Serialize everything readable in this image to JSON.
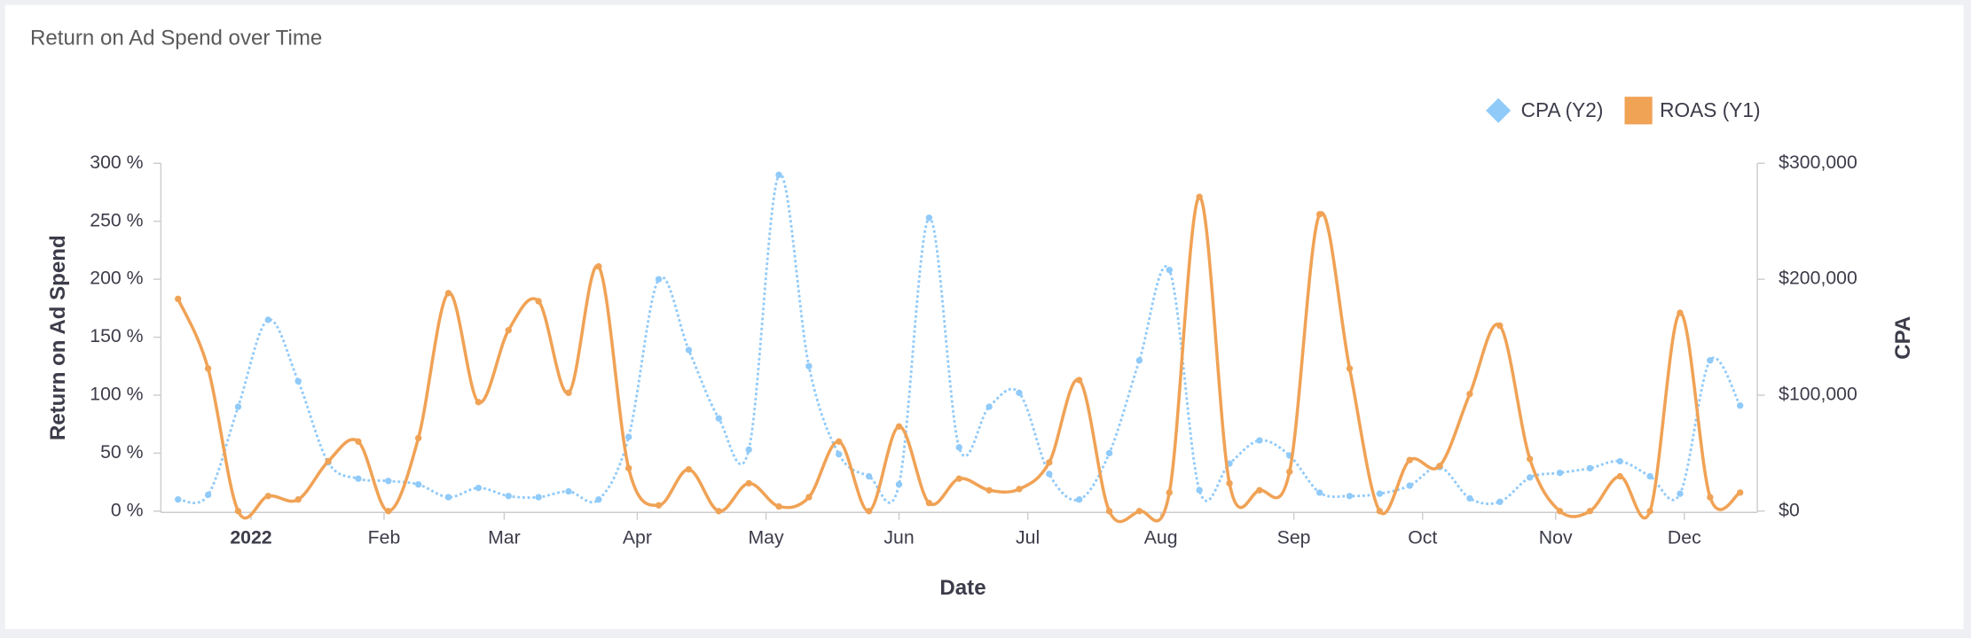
{
  "chart_data": {
    "type": "line",
    "title": "Return on Ad Spend over Time",
    "x_label": "Date",
    "y_label": "Return on Ad Spend",
    "y2_label": "CPA",
    "x": [
      -2,
      5,
      12,
      19,
      26,
      33,
      40,
      47,
      54,
      61,
      68,
      75,
      82,
      89,
      96,
      103,
      110,
      117,
      124,
      131,
      138,
      145,
      152,
      159,
      166,
      173,
      180,
      187,
      194,
      201,
      208,
      215,
      222,
      229,
      236,
      243,
      250,
      257,
      264,
      271,
      278,
      285,
      292,
      299,
      306,
      313,
      320,
      327,
      334,
      341,
      348,
      355,
      362
    ],
    "xlim": [
      -6,
      366
    ],
    "xticks": [
      {
        "value": 15,
        "label": "2022"
      },
      {
        "value": 46,
        "label": "Feb"
      },
      {
        "value": 74,
        "label": "Mar"
      },
      {
        "value": 105,
        "label": "Apr"
      },
      {
        "value": 135,
        "label": "May"
      },
      {
        "value": 166,
        "label": "Jun"
      },
      {
        "value": 196,
        "label": "Jul"
      },
      {
        "value": 227,
        "label": "Aug"
      },
      {
        "value": 258,
        "label": "Sep"
      },
      {
        "value": 288,
        "label": "Oct"
      },
      {
        "value": 319,
        "label": "Nov"
      },
      {
        "value": 349,
        "label": "Dec"
      }
    ],
    "ylim": [
      0,
      300
    ],
    "yticks": [
      {
        "value": 0,
        "label": "0 %"
      },
      {
        "value": 50,
        "label": "50 %"
      },
      {
        "value": 100,
        "label": "100 %"
      },
      {
        "value": 150,
        "label": "150 %"
      },
      {
        "value": 200,
        "label": "200 %"
      },
      {
        "value": 250,
        "label": "250 %"
      },
      {
        "value": 300,
        "label": "300 %"
      }
    ],
    "y2lim": [
      0,
      300000
    ],
    "y2ticks": [
      {
        "value": 0,
        "label": "$0"
      },
      {
        "value": 100000,
        "label": "$100,000"
      },
      {
        "value": 200000,
        "label": "$200,000"
      },
      {
        "value": 300000,
        "label": "$300,000"
      }
    ],
    "legend": "top-right",
    "series": [
      {
        "name": "CPA (Y2)",
        "color": "#90caf9",
        "axis": "y2",
        "values": [
          10000,
          14000,
          90000,
          165000,
          112000,
          42000,
          28000,
          26000,
          23000,
          12000,
          20000,
          13000,
          12000,
          17000,
          10000,
          64000,
          200000,
          139000,
          80000,
          53000,
          290000,
          125000,
          49000,
          30000,
          23000,
          253000,
          55000,
          90000,
          102000,
          32000,
          10000,
          50000,
          130000,
          208000,
          18000,
          41000,
          61000,
          48000,
          16000,
          13000,
          15000,
          22000,
          38000,
          11000,
          8000,
          29000,
          33000,
          37000,
          43000,
          30000,
          15000,
          130000,
          91000
        ]
      },
      {
        "name": "ROAS (Y1)",
        "color": "#f0a255",
        "values": [
          183,
          123,
          0,
          13,
          10,
          43,
          60,
          0,
          63,
          188,
          94,
          156,
          181,
          102,
          211,
          37,
          5,
          36,
          0,
          24,
          4,
          12,
          60,
          0,
          73,
          7,
          28,
          18,
          19,
          42,
          113,
          0,
          0,
          16,
          271,
          24,
          18,
          34,
          256,
          123,
          0,
          44,
          39,
          101,
          160,
          45,
          0,
          0,
          30,
          0,
          171,
          12,
          16
        ]
      }
    ]
  }
}
